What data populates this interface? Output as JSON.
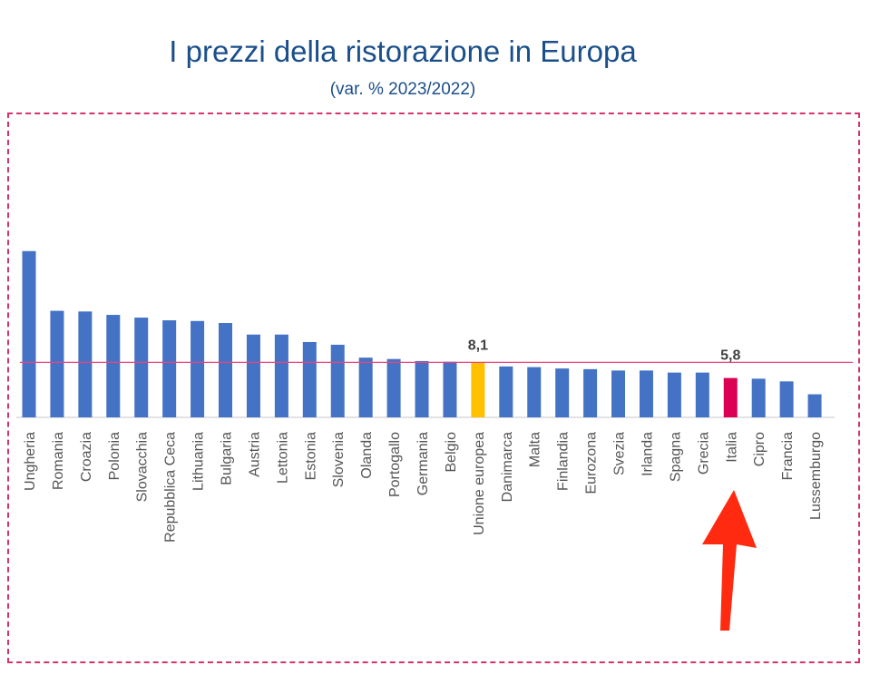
{
  "chart_data": {
    "type": "bar",
    "title": "I prezzi della ristorazione in Europa",
    "subtitle": "(var. % 2023/2022)",
    "xlabel": "",
    "ylabel": "",
    "ylim": [
      0,
      25
    ],
    "grid": false,
    "categories": [
      "Ungheria",
      "Romania",
      "Croazia",
      "Polonia",
      "Slovacchia",
      "Repubblica Ceca",
      "Lithuania",
      "Bulgaria",
      "Austria",
      "Lettonia",
      "Estonia",
      "Slovenia",
      "Olanda",
      "Portogallo",
      "Germania",
      "Belgio",
      "Unione europea",
      "Danimarca",
      "Malta",
      "Finlandia",
      "Eurozona",
      "Svezia",
      "Irlanda",
      "Spagna",
      "Grecia",
      "Italia",
      "Cipro",
      "Francia",
      "Lussemburgo"
    ],
    "values": [
      24.5,
      15.7,
      15.6,
      15.1,
      14.7,
      14.3,
      14.2,
      13.9,
      12.2,
      12.2,
      11.1,
      10.7,
      8.8,
      8.6,
      8.3,
      8.2,
      8.1,
      7.5,
      7.4,
      7.2,
      7.1,
      6.9,
      6.9,
      6.6,
      6.6,
      5.8,
      5.7,
      5.3,
      3.4
    ],
    "data_labels": [
      {
        "category": "Unione europea",
        "text": "8,1"
      },
      {
        "category": "Italia",
        "text": "5,8"
      }
    ],
    "reference_line": 8.1,
    "colors": {
      "default": "#4472c4",
      "Unione europea": "#ffc000",
      "Italia": "#dc0055",
      "reference_line": "#e8457f",
      "arrow": "#ff2a10",
      "frame": "#d6336c",
      "title": "#1b4f8a"
    }
  }
}
